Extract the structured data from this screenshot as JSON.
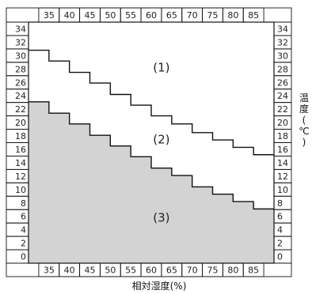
{
  "chart_data": {
    "type": "area",
    "xlabel": "相対湿度(%)",
    "ylabel": "温度(℃)",
    "x_ticks": [
      35,
      40,
      45,
      50,
      55,
      60,
      65,
      70,
      75,
      80,
      85
    ],
    "y_ticks": [
      0,
      2,
      4,
      6,
      8,
      10,
      12,
      14,
      16,
      18,
      20,
      22,
      24,
      26,
      28,
      30,
      32,
      34
    ],
    "xlim": [
      30,
      90
    ],
    "ylim": [
      -1,
      35
    ],
    "boundaries": [
      {
        "name": "upper",
        "x": [
          30,
          35,
          35,
          40,
          40,
          45,
          45,
          50,
          50,
          55,
          55,
          60,
          60,
          65,
          65,
          70,
          70,
          75,
          75,
          80,
          80,
          85,
          85,
          90
        ],
        "y": [
          30.8,
          30.8,
          29.2,
          29.2,
          27.5,
          27.5,
          25.9,
          25.9,
          24.2,
          24.2,
          22.6,
          22.6,
          21.0,
          21.0,
          19.8,
          19.8,
          18.5,
          18.5,
          17.4,
          17.4,
          16.3,
          16.3,
          15.2,
          15.2
        ]
      },
      {
        "name": "lower",
        "x": [
          30,
          35,
          35,
          40,
          40,
          45,
          45,
          50,
          50,
          55,
          55,
          60,
          60,
          65,
          65,
          70,
          70,
          75,
          75,
          80,
          80,
          85,
          85,
          90
        ],
        "y": [
          23.1,
          23.1,
          21.4,
          21.4,
          19.8,
          19.8,
          18.1,
          18.1,
          16.5,
          16.5,
          14.9,
          14.9,
          13.2,
          13.2,
          12.1,
          12.1,
          10.4,
          10.4,
          9.3,
          9.3,
          8.2,
          8.2,
          7.1,
          7.1
        ]
      }
    ],
    "regions": [
      {
        "label": "(1)",
        "x": 62.5,
        "y": 28.2
      },
      {
        "label": "(2)",
        "x": 62.5,
        "y": 17.5
      },
      {
        "label": "(3)",
        "x": 62.5,
        "y": 5.8
      }
    ],
    "shaded_region": "(3)",
    "grid": false,
    "colors": {
      "shade": "#d3d3d3",
      "line": "#111111",
      "background": "#ffffff"
    }
  }
}
